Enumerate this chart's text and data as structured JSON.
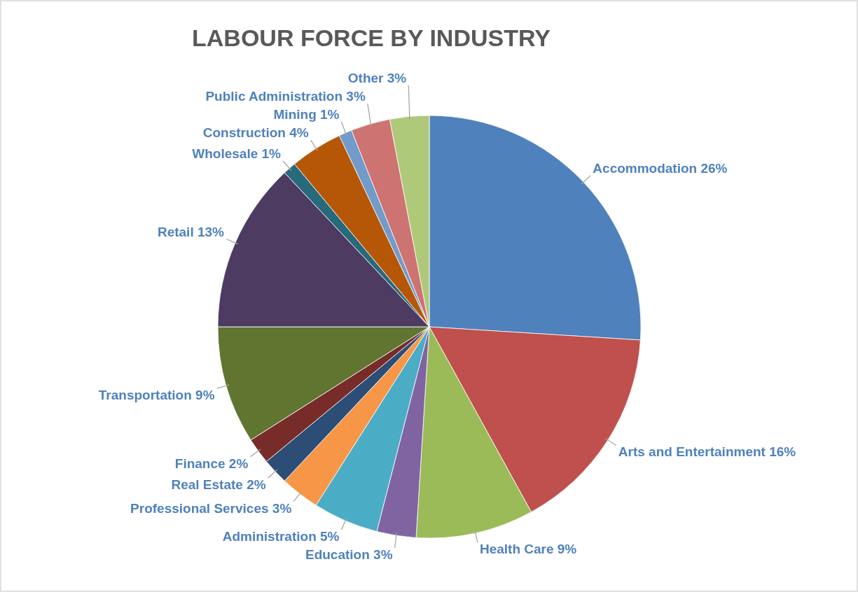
{
  "chart_data": {
    "type": "pie",
    "title": "LABOUR FORCE BY INDUSTRY",
    "categories": [
      "Accommodation",
      "Arts and Entertainment",
      "Health Care",
      "Education",
      "Administration",
      "Professional Services",
      "Real Estate",
      "Finance",
      "Transportation",
      "Retail",
      "Wholesale",
      "Construction",
      "Mining",
      "Public Administration",
      "Other"
    ],
    "values": [
      26,
      16,
      9,
      3,
      5,
      3,
      2,
      2,
      9,
      13,
      1,
      4,
      1,
      3,
      3
    ],
    "value_labels": [
      "26%",
      "16%",
      "9%",
      "3%",
      "5%",
      "3%",
      "2%",
      "2%",
      "9%",
      "13%",
      "1%",
      "4%",
      "1%",
      "3%",
      "3%"
    ],
    "colors": [
      "#4f81bd",
      "#c0504d",
      "#9bbb59",
      "#8064a2",
      "#4bacc6",
      "#f79646",
      "#2c4d75",
      "#772c2a",
      "#5f7530",
      "#4d3b62",
      "#276a7c",
      "#b65708",
      "#729aca",
      "#cd7371",
      "#afc97a"
    ]
  }
}
